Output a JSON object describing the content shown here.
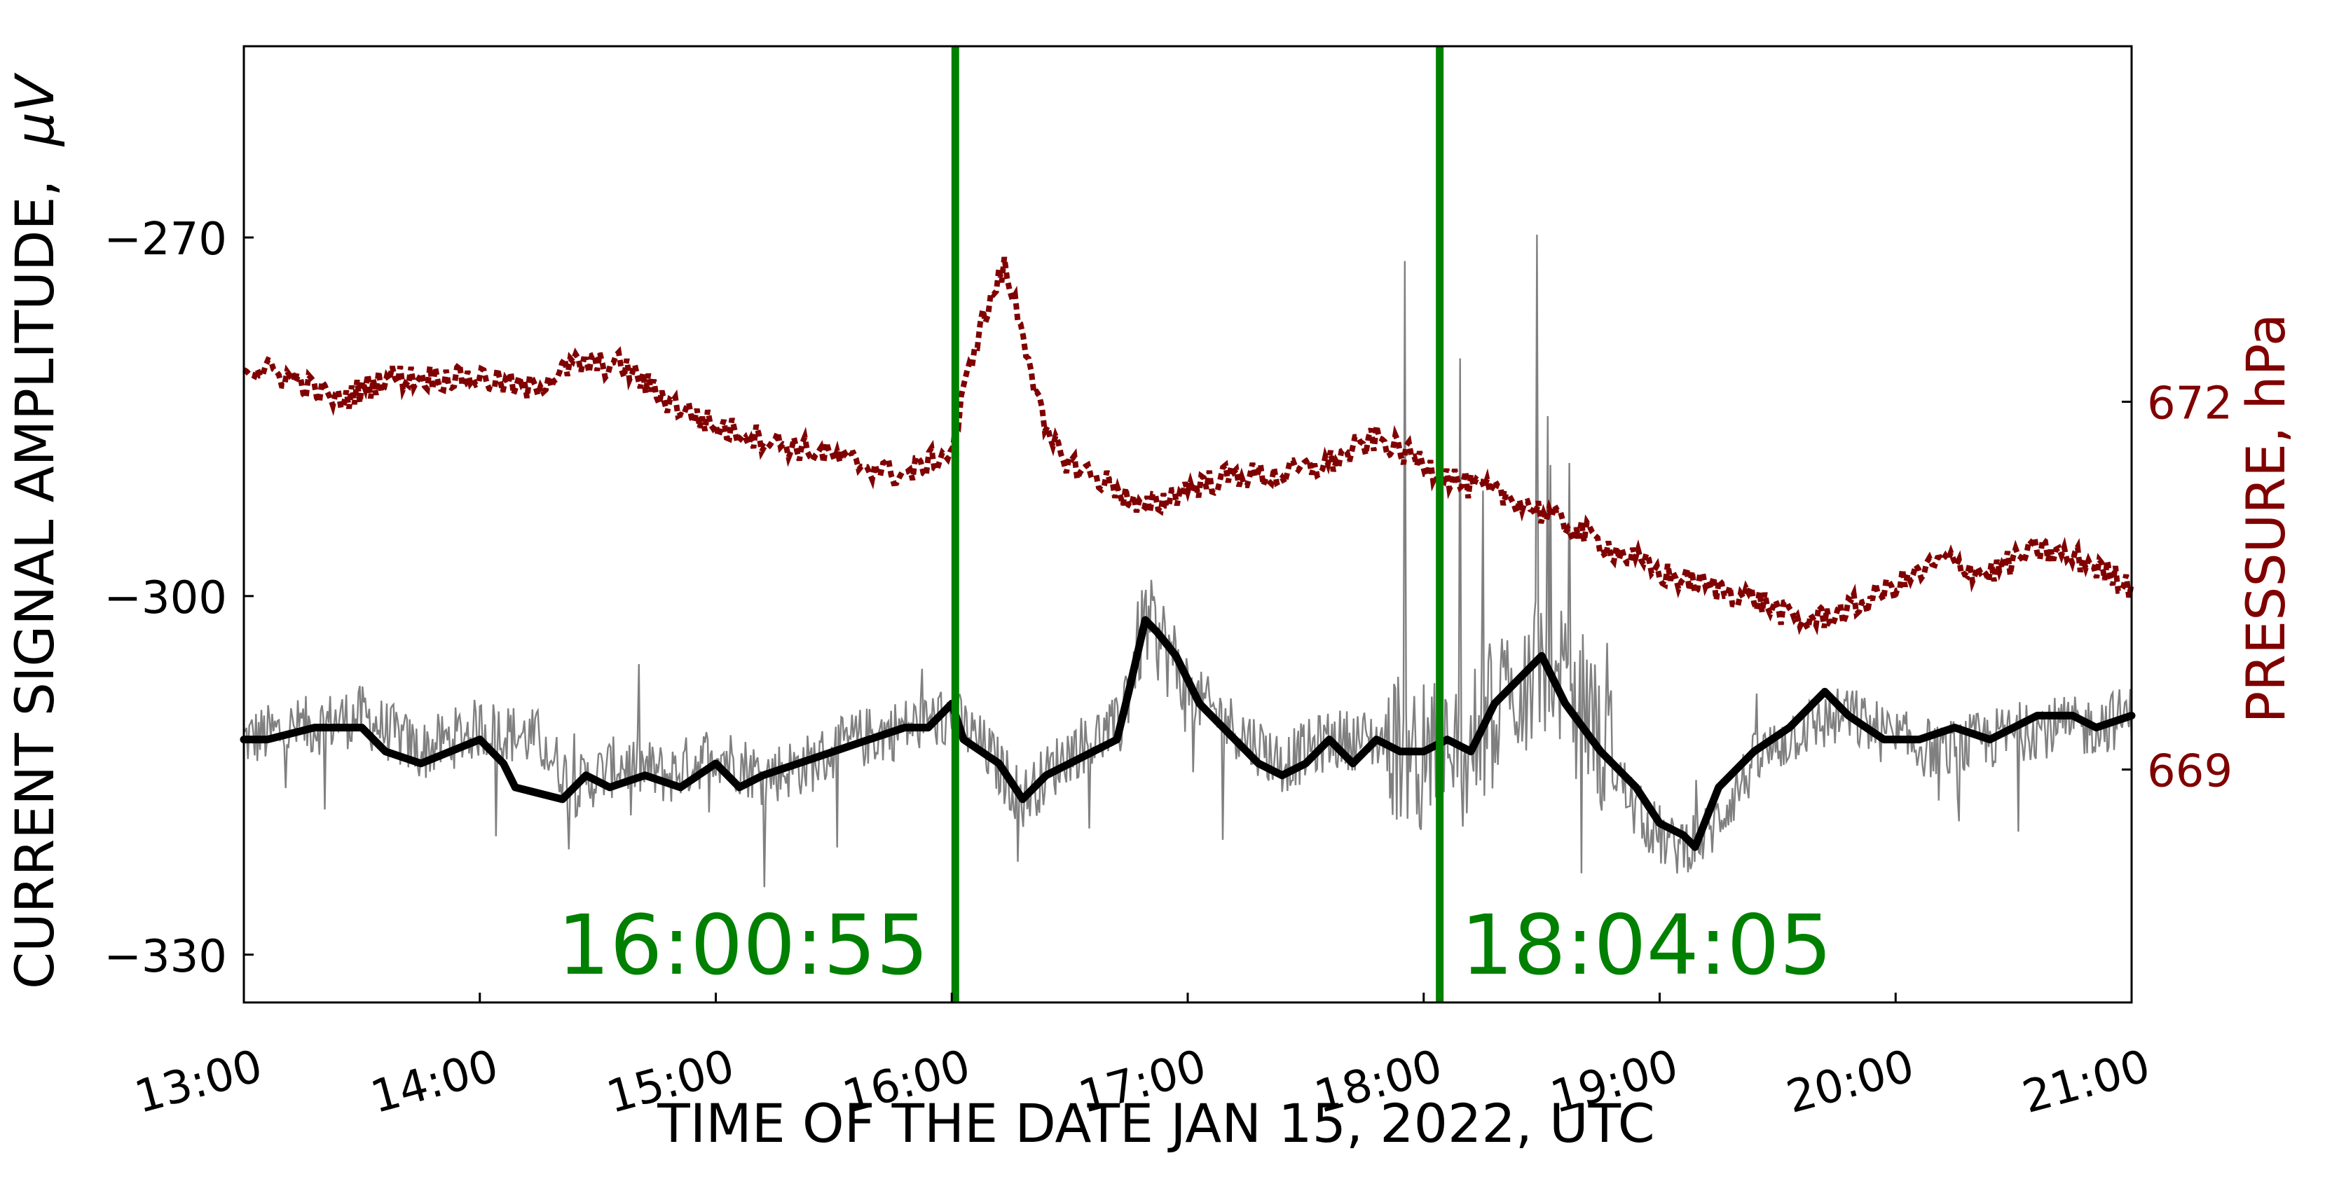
{
  "chart_data": {
    "type": "line",
    "title": "",
    "xlabel": "TIME OF THE DATE JAN 15, 2022, UTC",
    "ylabel_left": "CURRENT SIGNAL AMPLITUDE,",
    "ylabel_left_unit": "μV",
    "ylabel_right": "PRESSURE, hPa",
    "x_ticks": [
      "13:00",
      "14:00",
      "15:00",
      "16:00",
      "17:00",
      "18:00",
      "19:00",
      "20:00",
      "21:00"
    ],
    "x_range_hours": [
      13,
      21
    ],
    "y_left_ticks": [
      -270,
      -300,
      -330
    ],
    "y_left_range": [
      -334,
      -254
    ],
    "y_right_ticks": [
      672,
      669
    ],
    "y_right_range": [
      667.1,
      674.9
    ],
    "grid": false,
    "colors": {
      "raw": "#808080",
      "smoothed": "#000000",
      "pressure": "#800000",
      "markers": "#008000",
      "axes": "#000000"
    },
    "vlines": [
      {
        "time": 16.015,
        "label": "16:00:55"
      },
      {
        "time": 18.068,
        "label": "18:04:05"
      }
    ],
    "series": [
      {
        "kind": "raw",
        "axis": "left",
        "x": [
          13.0,
          13.25,
          13.5,
          13.75,
          14.0,
          14.25,
          14.4,
          14.6,
          14.8,
          15.0,
          15.2,
          15.4,
          15.6,
          15.8,
          16.0,
          16.15,
          16.3,
          16.5,
          16.7,
          16.82,
          16.9,
          17.0,
          17.2,
          17.4,
          17.6,
          17.8,
          18.0,
          18.2,
          18.35,
          18.5,
          18.7,
          18.9,
          19.05,
          19.2,
          19.4,
          19.6,
          19.8,
          20.0,
          20.2,
          20.4,
          20.6,
          20.8,
          21.0
        ],
        "y": [
          -312,
          -311,
          -310,
          -313,
          -311,
          -312,
          -316,
          -314,
          -315,
          -313,
          -315,
          -314,
          -312,
          -311,
          -310,
          -313,
          -317,
          -313,
          -311,
          -302,
          -304,
          -308,
          -311,
          -314,
          -312,
          -312,
          -313,
          -313,
          -308,
          -306,
          -310,
          -318,
          -321,
          -320,
          -314,
          -311,
          -310,
          -312,
          -313,
          -312,
          -311,
          -311,
          -310
        ]
      },
      {
        "kind": "smoothed",
        "axis": "left",
        "x": [
          13.0,
          13.1,
          13.3,
          13.5,
          13.6,
          13.75,
          14.0,
          14.1,
          14.15,
          14.35,
          14.45,
          14.55,
          14.7,
          14.85,
          15.0,
          15.1,
          15.2,
          15.35,
          15.5,
          15.65,
          15.8,
          15.9,
          16.0,
          16.05,
          16.2,
          16.3,
          16.4,
          16.5,
          16.6,
          16.7,
          16.75,
          16.82,
          16.87,
          16.95,
          17.05,
          17.2,
          17.3,
          17.4,
          17.5,
          17.6,
          17.7,
          17.8,
          17.9,
          18.0,
          18.1,
          18.2,
          18.3,
          18.45,
          18.5,
          18.6,
          18.75,
          18.9,
          19.0,
          19.1,
          19.15,
          19.25,
          19.4,
          19.55,
          19.7,
          19.8,
          19.95,
          20.1,
          20.25,
          20.4,
          20.5,
          20.6,
          20.75,
          20.85,
          21.0
        ],
        "y": [
          -312,
          -312,
          -311,
          -311,
          -313,
          -314,
          -312,
          -314,
          -316,
          -317,
          -315,
          -316,
          -315,
          -316,
          -314,
          -316,
          -315,
          -314,
          -313,
          -312,
          -311,
          -311,
          -309,
          -312,
          -314,
          -317,
          -315,
          -314,
          -313,
          -312,
          -308,
          -302,
          -303,
          -305,
          -309,
          -312,
          -314,
          -315,
          -314,
          -312,
          -314,
          -312,
          -313,
          -313,
          -312,
          -313,
          -309,
          -306,
          -305,
          -309,
          -313,
          -316,
          -319,
          -320,
          -321,
          -316,
          -313,
          -311,
          -308,
          -310,
          -312,
          -312,
          -311,
          -312,
          -311,
          -310,
          -310,
          -311,
          -310
        ]
      },
      {
        "kind": "pressure",
        "axis": "right",
        "x": [
          13.0,
          13.2,
          13.4,
          13.6,
          13.8,
          14.0,
          14.2,
          14.4,
          14.6,
          14.8,
          15.0,
          15.2,
          15.4,
          15.6,
          15.8,
          16.0,
          16.1,
          16.22,
          16.3,
          16.4,
          16.5,
          16.7,
          16.8,
          17.0,
          17.2,
          17.4,
          17.6,
          17.8,
          18.0,
          18.2,
          18.4,
          18.6,
          18.8,
          19.0,
          19.2,
          19.4,
          19.6,
          19.8,
          20.0,
          20.2,
          20.4,
          20.6,
          20.8,
          21.0
        ],
        "y": [
          672.3,
          672.2,
          672.0,
          672.2,
          672.2,
          672.2,
          672.1,
          672.3,
          672.3,
          672.0,
          671.8,
          671.7,
          671.6,
          671.5,
          671.4,
          671.6,
          672.5,
          673.1,
          672.6,
          671.7,
          671.5,
          671.3,
          671.1,
          671.3,
          671.4,
          671.4,
          671.5,
          671.7,
          671.5,
          671.3,
          671.2,
          671.0,
          670.8,
          670.6,
          670.5,
          670.4,
          670.2,
          670.3,
          670.5,
          670.7,
          670.6,
          670.8,
          670.7,
          670.5
        ]
      }
    ]
  }
}
